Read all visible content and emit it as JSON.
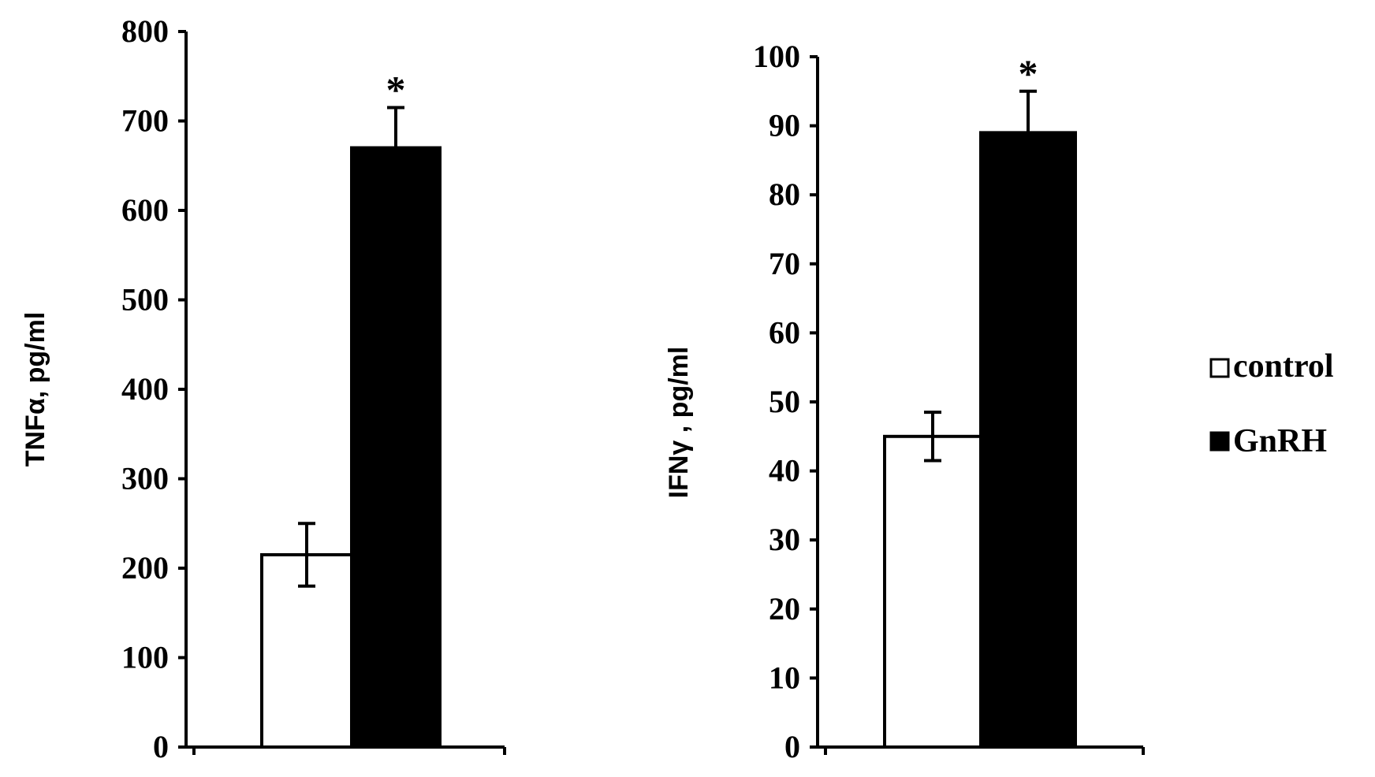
{
  "chart_data": [
    {
      "type": "bar",
      "ylabel": "TNFα, pg/ml",
      "ylim": [
        0,
        800
      ],
      "yticks": [
        0,
        100,
        200,
        300,
        400,
        500,
        600,
        700,
        800
      ],
      "series": [
        {
          "name": "control",
          "value": 215,
          "error": 35,
          "color": "#ffffff"
        },
        {
          "name": "GnRH",
          "value": 670,
          "error": 45,
          "color": "#000000",
          "annotation": "*"
        }
      ]
    },
    {
      "type": "bar",
      "ylabel": "IFNγ , pg/ml",
      "ylim": [
        0,
        100
      ],
      "yticks": [
        0,
        10,
        20,
        30,
        40,
        50,
        60,
        70,
        80,
        90,
        100
      ],
      "series": [
        {
          "name": "control",
          "value": 45,
          "error": 3.5,
          "color": "#ffffff"
        },
        {
          "name": "GnRH",
          "value": 89,
          "error": 6,
          "color": "#000000",
          "annotation": "*"
        }
      ]
    }
  ],
  "legend": {
    "position": "right",
    "items": [
      {
        "label": "control",
        "color": "#ffffff"
      },
      {
        "label": "GnRH",
        "color": "#000000"
      }
    ]
  }
}
